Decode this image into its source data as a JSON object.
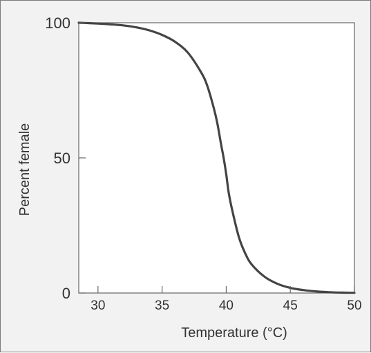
{
  "chart_data": {
    "type": "line",
    "title": "",
    "xlabel": "Temperature (°C)",
    "ylabel": "Percent female",
    "xlim": [
      28.5,
      50
    ],
    "ylim": [
      0,
      100
    ],
    "x_ticks": [
      30,
      35,
      40,
      45,
      50
    ],
    "y_ticks": [
      0,
      50,
      100
    ],
    "grid": false,
    "legend": "none",
    "colors": {
      "line": "#444444",
      "plot_background": "#ffffff",
      "figure_background": "#f2f2f2"
    },
    "series": [
      {
        "x": [
          28.5,
          30,
          31,
          32,
          33,
          34,
          35,
          36,
          37,
          38,
          38.5,
          39,
          39.3,
          39.6,
          39.8,
          40,
          40.2,
          40.5,
          41,
          41.5,
          42,
          43,
          44,
          45,
          46,
          47,
          48,
          49,
          50
        ],
        "y": [
          100,
          99.7,
          99.4,
          99,
          98.3,
          97.2,
          95.5,
          93,
          89,
          82,
          77,
          69,
          63,
          55,
          50,
          44,
          37,
          30,
          20.5,
          14.5,
          10.5,
          6,
          3.4,
          1.9,
          1.1,
          0.6,
          0.3,
          0.15,
          0.1
        ]
      }
    ]
  }
}
